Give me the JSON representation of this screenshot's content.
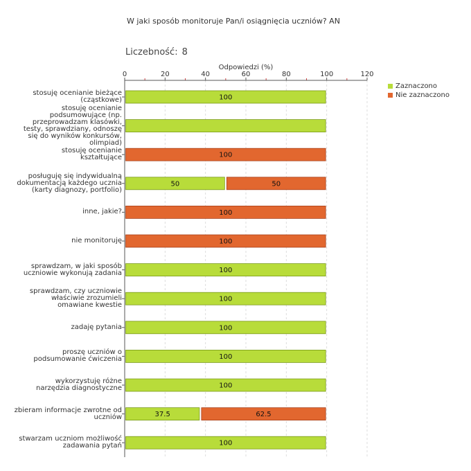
{
  "title": "W jaki sposób monitoruje Pan/i osiągnięcia uczniów?  AN",
  "count_label": "Liczebność:",
  "count_value": "8",
  "colors": {
    "selected": "#b8dc3a",
    "selected_border": "#7a9a1a",
    "not_selected": "#e2672f",
    "not_selected_border": "#a8401a",
    "grid": "#dddddd",
    "axis": "#555555",
    "minor_tick": "#d04040"
  },
  "legend": [
    {
      "label": "Zaznaczono",
      "color": "#b8dc3a"
    },
    {
      "label": "Nie zaznaczono",
      "color": "#e2672f"
    }
  ],
  "chart_data": {
    "type": "bar",
    "orientation": "horizontal",
    "stacked": true,
    "xlabel": "Odpowiedzi (%)",
    "xlim": [
      0,
      120
    ],
    "xticks": [
      0,
      20,
      40,
      60,
      80,
      100,
      120
    ],
    "grid": true,
    "legend_position": "top-right",
    "categories": [
      "stosuję ocenianie bieżące\n(cząstkowe)",
      "stosuję ocenianie\npodsumowujące (np.\nprzeprowadzam klasówki,\ntesty, sprawdziany, odnoszę\nsię do wyników konkursów,\nolimpiad)",
      "stosuję ocenianie\nkształtujące",
      "posługuję się indywidualną\ndokumentacją każdego ucznia\n(karty diagnozy, portfolio)",
      "inne, jakie?",
      "nie monitoruję",
      "sprawdzam, w jaki sposób\nuczniowie wykonują zadania",
      "sprawdzam, czy uczniowie\nwłaściwie zrozumieli\nomawiane kwestie",
      "zadaję pytania",
      "proszę uczniów o\npodsumowanie ćwiczenia",
      "wykorzystuję różne\nnarzędzia diagnostyczne",
      "zbieram informacje zwrotne od\nuczniów",
      "stwarzam uczniom możliwość\nzadawania pytań"
    ],
    "series": [
      {
        "name": "Zaznaczono",
        "values": [
          100,
          100,
          0,
          50,
          0,
          0,
          100,
          100,
          100,
          100,
          100,
          37.5,
          100
        ]
      },
      {
        "name": "Nie zaznaczono",
        "values": [
          0,
          0,
          100,
          50,
          100,
          100,
          0,
          0,
          0,
          0,
          0,
          62.5,
          0
        ]
      }
    ],
    "data_labels": [
      [
        "100",
        "",
        "",
        "50",
        "",
        "",
        "100",
        "100",
        "100",
        "100",
        "100",
        "37.5",
        "100"
      ],
      [
        "",
        "",
        "100",
        "50",
        "100",
        "100",
        "",
        "",
        "",
        "",
        "",
        "62.5",
        ""
      ]
    ]
  }
}
